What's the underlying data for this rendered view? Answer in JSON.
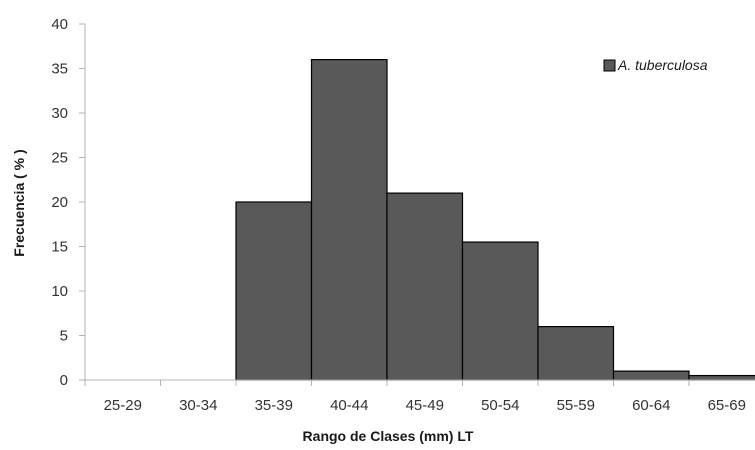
{
  "chart_data": {
    "type": "bar",
    "categories": [
      "25-29",
      "30-34",
      "35-39",
      "40-44",
      "45-49",
      "50-54",
      "55-59",
      "60-64",
      "65-69"
    ],
    "series": [
      {
        "name": "A. tuberculosa",
        "values": [
          0,
          0,
          20,
          36,
          21,
          15.5,
          6,
          1,
          0.5
        ],
        "color": "#595959"
      }
    ],
    "xlabel": "Rango de Clases (mm) LT",
    "ylabel": "Frecuencia ( % )",
    "ylim": [
      0,
      40
    ],
    "yticks": [
      0,
      5,
      10,
      15,
      20,
      25,
      30,
      35,
      40
    ],
    "grid": false,
    "legend_position": "top-right",
    "bar_outline_color": "#000000",
    "axis_color": "#b3b3b3"
  }
}
